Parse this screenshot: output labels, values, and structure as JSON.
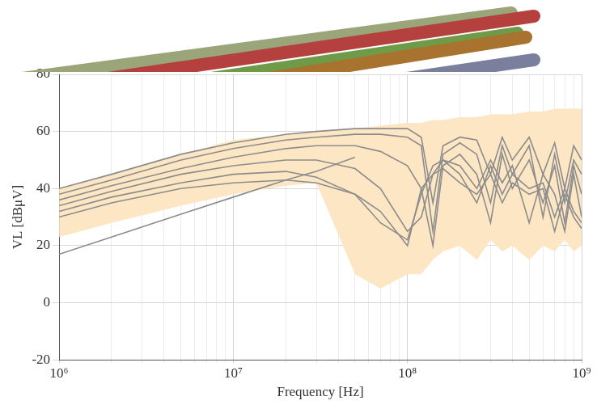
{
  "chart_data": {
    "type": "line",
    "x_label": "Frequency [Hz]",
    "y_label": "VL [dBμV]",
    "log": "x",
    "grid": true,
    "xlim": [
      1000000,
      1000000000
    ],
    "xticks": [
      {
        "value": 1000000,
        "label": "10⁶"
      },
      {
        "value": 10000000,
        "label": "10⁷"
      },
      {
        "value": 100000000,
        "label": "10⁸"
      },
      {
        "value": 1000000000,
        "label": "10⁹"
      }
    ],
    "ylim": [
      -20,
      80
    ],
    "yticks": [
      -20,
      0,
      20,
      40,
      60,
      80
    ],
    "x": [
      1000000,
      2000000,
      5000000,
      10000000,
      20000000,
      30000000,
      50000000,
      70000000,
      100000000,
      120000000,
      140000000,
      160000000,
      200000000,
      250000000,
      300000000,
      350000000,
      400000000,
      500000000,
      600000000,
      700000000,
      800000000,
      900000000,
      1000000000
    ],
    "band": {
      "color": "#fde6c4",
      "lower": [
        23,
        28,
        34,
        38,
        41,
        42,
        10,
        5,
        10,
        10,
        15,
        18,
        20,
        15,
        22,
        18,
        20,
        15,
        20,
        18,
        22,
        18,
        20
      ],
      "upper": [
        40,
        45,
        52,
        57,
        59,
        60,
        61,
        62,
        63,
        63,
        64,
        64,
        65,
        65,
        66,
        66,
        66,
        67,
        67,
        68,
        68,
        68,
        68
      ]
    },
    "series": [
      {
        "color": "#8c8c8c",
        "values": [
          40,
          45,
          52,
          56,
          59,
          60,
          61,
          61,
          61,
          58,
          35,
          55,
          58,
          57,
          45,
          58,
          50,
          58,
          45,
          56,
          40,
          55,
          50
        ]
      },
      {
        "color": "#8c8c8c",
        "values": [
          38,
          43,
          50,
          54,
          57,
          58,
          59,
          59,
          58,
          55,
          25,
          52,
          56,
          52,
          35,
          55,
          45,
          55,
          30,
          52,
          35,
          50,
          45
        ]
      },
      {
        "color": "#8c8c8c",
        "values": [
          36,
          41,
          47,
          51,
          54,
          55,
          55,
          53,
          48,
          40,
          20,
          48,
          52,
          45,
          28,
          52,
          40,
          50,
          35,
          48,
          28,
          48,
          38
        ]
      },
      {
        "color": "#8c8c8c",
        "values": [
          34,
          39,
          45,
          48,
          50,
          50,
          47,
          40,
          25,
          30,
          45,
          50,
          48,
          40,
          50,
          42,
          48,
          28,
          45,
          38,
          25,
          45,
          30
        ]
      },
      {
        "color": "#8c8c8c",
        "values": [
          32,
          37,
          42,
          45,
          46,
          44,
          38,
          28,
          22,
          38,
          48,
          50,
          45,
          35,
          48,
          38,
          45,
          40,
          42,
          30,
          40,
          32,
          28
        ]
      },
      {
        "color": "#8c8c8c",
        "values": [
          30,
          35,
          40,
          42,
          43,
          42,
          38,
          32,
          20,
          40,
          45,
          47,
          42,
          38,
          45,
          35,
          42,
          38,
          40,
          25,
          38,
          30,
          26
        ]
      },
      {
        "color": "#8c8c8c",
        "values": [
          17,
          23,
          31,
          37,
          43,
          46,
          51,
          null,
          null,
          null,
          null,
          null,
          null,
          null,
          null,
          null,
          null,
          null,
          null,
          null,
          null,
          null,
          null
        ]
      }
    ]
  }
}
